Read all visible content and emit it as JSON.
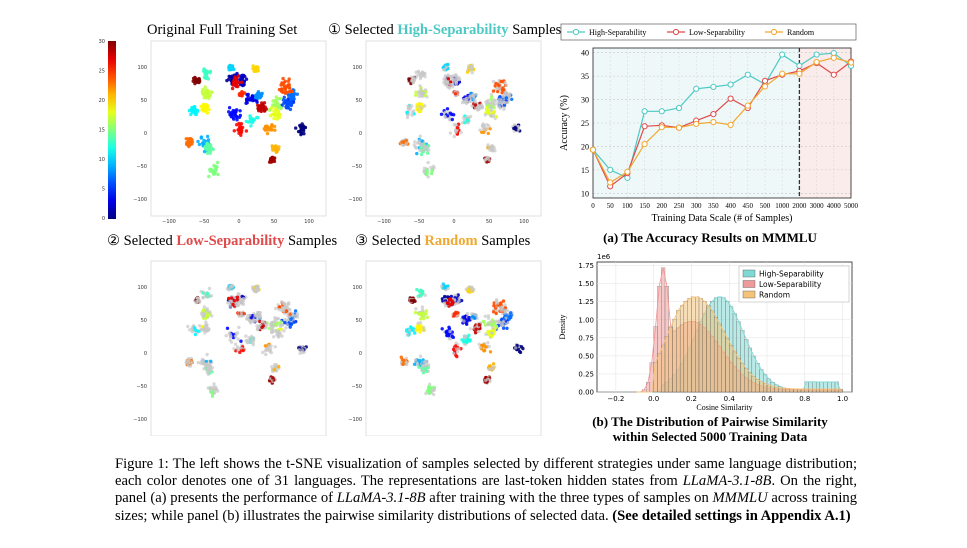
{
  "tsne": {
    "panel_full_title": "Original Full Training Set",
    "panel_high": {
      "prefix": "① Selected ",
      "highlight": "High-Separability",
      "suffix": " Samples"
    },
    "panel_low": {
      "prefix": "② Selected ",
      "highlight": "Low-Separability",
      "suffix": " Samples"
    },
    "panel_rand": {
      "prefix": "③ Selected ",
      "highlight": "Random",
      "suffix": " Samples"
    },
    "x_ticks": [
      "−100",
      "−50",
      "0",
      "50",
      "100"
    ],
    "y_ticks": [
      "100",
      "50",
      "0",
      "−50",
      "−100"
    ],
    "colorbar_ticks": [
      "30",
      "25",
      "20",
      "15",
      "10",
      "5",
      "0"
    ]
  },
  "chart_data": [
    {
      "type": "line",
      "title": "(a) The Accuracy Results on MMMLU",
      "xlabel": "Training Data Scale (# of Samples)",
      "ylabel": "Accuracy (%)",
      "categories": [
        "0",
        "50",
        "100",
        "150",
        "200",
        "250",
        "300",
        "350",
        "400",
        "450",
        "500",
        "1000",
        "2000",
        "3000",
        "4000",
        "5000"
      ],
      "ylim": [
        9,
        41
      ],
      "yticks": [
        "40",
        "35",
        "30",
        "25",
        "20",
        "15",
        "10"
      ],
      "divider_after": "2000",
      "series": [
        {
          "name": "High-Separability",
          "color": "#4cc9c4",
          "values": [
            19.3,
            15.0,
            13.3,
            27.5,
            27.5,
            28.2,
            32.3,
            32.7,
            33.2,
            35.3,
            33.3,
            39.6,
            37.2,
            39.6,
            39.9,
            37.2
          ]
        },
        {
          "name": "Low-Separability",
          "color": "#e04a4a",
          "values": [
            19.3,
            11.5,
            14.3,
            24.3,
            24.5,
            24.0,
            25.5,
            26.9,
            30.2,
            28.2,
            34.0,
            35.3,
            36.1,
            37.8,
            35.3,
            38.1
          ]
        },
        {
          "name": "Random",
          "color": "#f0a830",
          "values": [
            19.3,
            12.3,
            14.6,
            20.5,
            24.1,
            24.0,
            24.8,
            25.2,
            24.6,
            28.7,
            32.8,
            35.5,
            35.5,
            38.0,
            38.9,
            37.9
          ]
        }
      ]
    },
    {
      "type": "histogram",
      "title_line1": "(b) The Distribution of Pairwise Similarity",
      "title_line2": "within Selected 5000 Training Data",
      "xlabel": "Cosine Similarity",
      "ylabel": "Density",
      "scale_label": "1e6",
      "xlim": [
        -0.3,
        1.05
      ],
      "ylim": [
        0,
        1.8
      ],
      "xticks": [
        "−0.2",
        "0.0",
        "0.2",
        "0.4",
        "0.6",
        "0.8",
        "1.0"
      ],
      "yticks": [
        "1.75",
        "1.50",
        "1.25",
        "1.00",
        "0.75",
        "0.50",
        "0.25",
        "0.00"
      ],
      "series": [
        {
          "name": "High-Separability",
          "color": "#7fd8d4",
          "peak_x": 0.35,
          "peak_y": 1.3
        },
        {
          "name": "Low-Separability",
          "color": "#ef9a9a",
          "peak_x": 0.05,
          "peak_y": 1.72
        },
        {
          "name": "Random",
          "color": "#f3c37a",
          "peak_x": 0.22,
          "peak_y": 1.28
        }
      ]
    }
  ],
  "caption": {
    "p1": "Figure 1: The left shows the t-SNE visualization of samples selected by different strategies under same language distribution; each color denotes one of 31 languages. The representations are last-token hidden states from ",
    "m1": "LLaMA-3.1-8B",
    "p2": ". On the right, panel (a) presents the performance of ",
    "m2": "LLaMA-3.1-8B",
    "p3": " after training with the three types of samples on ",
    "m3": "MMMLU",
    "p4": " across training sizes; while panel (b) illustrates the pairwise similarity distributions of selected data. ",
    "bold": "(See detailed settings in Appendix A.1)"
  }
}
